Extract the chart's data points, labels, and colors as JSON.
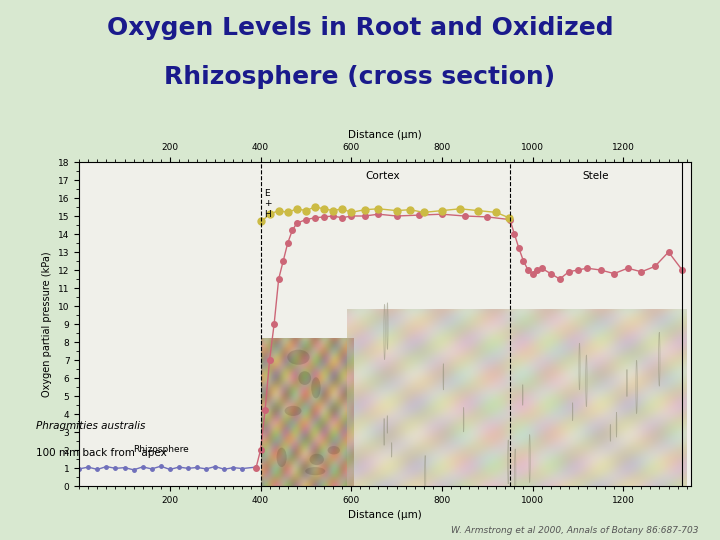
{
  "title_line1": "Oxygen Levels in Root and Oxidized",
  "title_line2": "Rhizosphere (cross section)",
  "title_color": "#1a1a8c",
  "title_fontsize": 18,
  "bg_color": "#d8e8d0",
  "plot_bg_color": "#f0f0ea",
  "xlabel": "Distance (μm)",
  "ylabel": "Oxygen partial pressure (kPa)",
  "xlim": [
    0,
    1350
  ],
  "ylim": [
    0,
    18
  ],
  "xticks": [
    200,
    400,
    600,
    800,
    1000,
    1200
  ],
  "yticks": [
    0,
    1,
    2,
    3,
    4,
    5,
    6,
    7,
    8,
    9,
    10,
    11,
    12,
    13,
    14,
    15,
    16,
    17,
    18
  ],
  "citation": "W. Armstrong et al 2000, Annals of Botany 86:687-703",
  "species_label_line1": "Phragmities australis",
  "species_label_line2": "100 mm back from  apex",
  "vline1_x": 400,
  "vline2_x": 950,
  "label_E_H": "E\n+\nH",
  "label_cortex": "Cortex",
  "label_stele": "Stele",
  "label_rhizosphere": "Rhizosphere",
  "rhizosphere_x": [
    0,
    20,
    40,
    60,
    80,
    100,
    120,
    140,
    160,
    180,
    200,
    220,
    240,
    260,
    280,
    300,
    320,
    340,
    360,
    390
  ],
  "rhizosphere_y": [
    0.95,
    1.05,
    0.92,
    1.08,
    0.98,
    1.02,
    0.9,
    1.06,
    0.95,
    1.1,
    0.92,
    1.05,
    0.98,
    1.03,
    0.95,
    1.08,
    0.93,
    1.02,
    0.97,
    1.05
  ],
  "rhizosphere_color": "#7070bb",
  "pink_x": [
    390,
    400,
    410,
    420,
    430,
    440,
    450,
    460,
    470,
    480,
    500,
    520,
    540,
    560,
    580,
    600,
    630,
    660,
    700,
    750,
    800,
    850,
    900,
    950,
    960,
    970,
    980,
    990,
    1000,
    1010,
    1020,
    1040,
    1060,
    1080,
    1100,
    1120,
    1150,
    1180,
    1210,
    1240,
    1270,
    1300,
    1330
  ],
  "pink_y": [
    1.0,
    2.0,
    4.2,
    7.0,
    9.0,
    11.5,
    12.5,
    13.5,
    14.2,
    14.6,
    14.8,
    14.9,
    14.95,
    15.0,
    14.9,
    15.0,
    15.0,
    15.1,
    15.0,
    15.05,
    15.1,
    15.0,
    14.95,
    14.8,
    14.0,
    13.2,
    12.5,
    12.0,
    11.8,
    12.0,
    12.1,
    11.8,
    11.5,
    11.9,
    12.0,
    12.1,
    12.0,
    11.8,
    12.1,
    11.9,
    12.2,
    13.0,
    12.0
  ],
  "pink_color": "#cc6677",
  "yellow_x": [
    402,
    420,
    440,
    460,
    480,
    500,
    520,
    540,
    560,
    580,
    600,
    630,
    660,
    700,
    730,
    760,
    800,
    840,
    880,
    920,
    948
  ],
  "yellow_y": [
    14.7,
    15.1,
    15.3,
    15.2,
    15.4,
    15.3,
    15.5,
    15.4,
    15.3,
    15.4,
    15.2,
    15.35,
    15.4,
    15.3,
    15.35,
    15.2,
    15.3,
    15.4,
    15.3,
    15.2,
    14.9
  ],
  "yellow_color": "#ccbb44",
  "left_img_x1": 400,
  "left_img_x2": 605,
  "left_img_y1": 0,
  "left_img_y2": 8.2,
  "right_img_x1": 590,
  "right_img_x2": 1340,
  "right_img_y1": 0,
  "right_img_y2": 9.8
}
